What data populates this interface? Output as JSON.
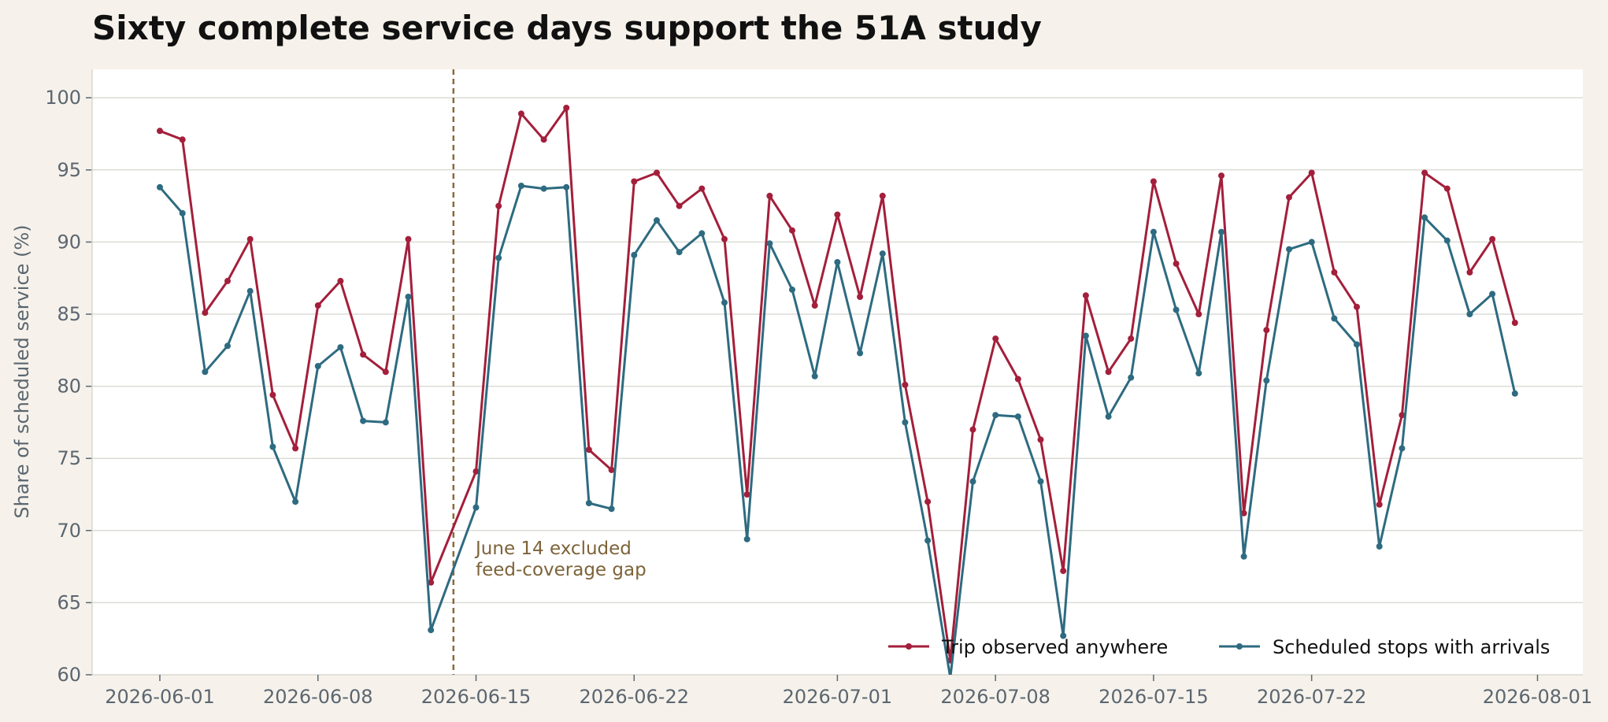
{
  "chart_data": {
    "type": "line",
    "title": "Sixty complete service days support the 51A study",
    "ylabel": "Share of scheduled service (%)",
    "xlabel": "",
    "ylim": [
      60,
      102
    ],
    "yticks": [
      60,
      65,
      70,
      75,
      80,
      85,
      90,
      95,
      100
    ],
    "xticks": [
      "2026-06-01",
      "2026-06-08",
      "2026-06-15",
      "2026-06-22",
      "2026-07-01",
      "2026-07-08",
      "2026-07-15",
      "2026-07-22",
      "2026-08-01"
    ],
    "grid": "horizontal",
    "legend_position": "bottom-right",
    "x": [
      "2026-06-01",
      "2026-06-02",
      "2026-06-03",
      "2026-06-04",
      "2026-06-05",
      "2026-06-06",
      "2026-06-07",
      "2026-06-08",
      "2026-06-09",
      "2026-06-10",
      "2026-06-11",
      "2026-06-12",
      "2026-06-13",
      "2026-06-15",
      "2026-06-16",
      "2026-06-17",
      "2026-06-18",
      "2026-06-19",
      "2026-06-20",
      "2026-06-21",
      "2026-06-22",
      "2026-06-23",
      "2026-06-24",
      "2026-06-25",
      "2026-06-26",
      "2026-06-27",
      "2026-06-28",
      "2026-06-29",
      "2026-06-30",
      "2026-07-01",
      "2026-07-02",
      "2026-07-03",
      "2026-07-04",
      "2026-07-05",
      "2026-07-06",
      "2026-07-07",
      "2026-07-08",
      "2026-07-09",
      "2026-07-10",
      "2026-07-11",
      "2026-07-12",
      "2026-07-13",
      "2026-07-14",
      "2026-07-15",
      "2026-07-16",
      "2026-07-17",
      "2026-07-18",
      "2026-07-19",
      "2026-07-20",
      "2026-07-21",
      "2026-07-22",
      "2026-07-23",
      "2026-07-24",
      "2026-07-25",
      "2026-07-26",
      "2026-07-27",
      "2026-07-28",
      "2026-07-29",
      "2026-07-30",
      "2026-07-31"
    ],
    "series": [
      {
        "name": "Trip observed anywhere",
        "color": "#a31f3b",
        "values": [
          97.7,
          97.1,
          85.1,
          87.3,
          90.2,
          79.4,
          75.7,
          85.6,
          87.3,
          82.2,
          81.0,
          90.2,
          66.4,
          74.1,
          92.5,
          98.9,
          97.1,
          99.3,
          75.6,
          74.2,
          94.2,
          94.8,
          92.5,
          93.7,
          90.2,
          72.5,
          93.2,
          90.8,
          85.6,
          91.9,
          86.2,
          93.2,
          80.1,
          72.0,
          61.0,
          77.0,
          83.3,
          80.5,
          76.3,
          67.2,
          86.3,
          81.0,
          83.3,
          94.2,
          88.5,
          85.0,
          94.6,
          71.2,
          83.9,
          93.1,
          94.8,
          87.9,
          85.5,
          71.8,
          78.0,
          94.8,
          93.7,
          87.9,
          90.2,
          84.4
        ]
      },
      {
        "name": "Scheduled stops with arrivals",
        "color": "#2e6b80",
        "values": [
          93.8,
          92.0,
          81.0,
          82.8,
          86.6,
          75.8,
          72.0,
          81.4,
          82.7,
          77.6,
          77.5,
          86.2,
          63.1,
          71.6,
          88.9,
          93.9,
          93.7,
          93.8,
          71.9,
          71.5,
          89.1,
          91.5,
          89.3,
          90.6,
          85.8,
          69.4,
          89.9,
          86.7,
          80.7,
          88.6,
          82.3,
          89.2,
          77.5,
          69.3,
          59.8,
          73.4,
          78.0,
          77.9,
          73.4,
          62.7,
          83.5,
          77.9,
          80.6,
          90.7,
          85.3,
          80.9,
          90.7,
          68.2,
          80.4,
          89.5,
          90.0,
          84.7,
          82.9,
          68.9,
          75.7,
          91.7,
          90.1,
          85.0,
          86.4,
          79.5
        ]
      }
    ],
    "annotations": [
      {
        "marker_date": "2026-06-14",
        "lines": [
          "June 14 excluded",
          "feed-coverage gap"
        ],
        "color": "#8a6a3c"
      }
    ]
  }
}
